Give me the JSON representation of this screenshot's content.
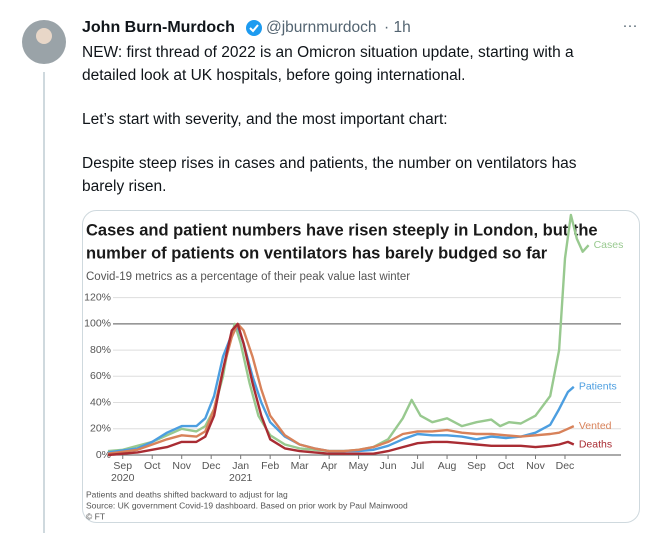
{
  "tweet": {
    "author": "John Burn-Murdoch",
    "handle": "@jburnmurdoch",
    "time": "· 1h",
    "more": "···",
    "paragraphs": [
      [
        "NEW: first thread of 2022 is an Omicron situation update, starting with a",
        "detailed look at UK hospitals, before going international."
      ],
      [
        "Let’s start with severity, and the most important chart:"
      ],
      [
        "Despite steep rises in cases and patients, the number on ventilators has",
        "barely risen."
      ]
    ]
  },
  "chart": {
    "type": "line",
    "title": [
      "Cases and patient numbers have risen steeply in London, but the",
      "number of patients on ventilators has barely budged so far"
    ],
    "subtitle": "Covid-19 metrics as a percentage of their peak value last winter",
    "xlim": [
      0,
      17.4
    ],
    "ylim": [
      0,
      183
    ],
    "yticks": [
      {
        "value": 0,
        "label": "0%"
      },
      {
        "value": 20,
        "label": "20%"
      },
      {
        "value": 40,
        "label": "40%"
      },
      {
        "value": 60,
        "label": "60%"
      },
      {
        "value": 80,
        "label": "80%"
      },
      {
        "value": 100,
        "label": "100%"
      },
      {
        "value": 120,
        "label": "120%"
      }
    ],
    "xticks": [
      {
        "value": 0.5,
        "label": "Sep"
      },
      {
        "value": 1.5,
        "label": "Oct"
      },
      {
        "value": 2.5,
        "label": "Nov"
      },
      {
        "value": 3.5,
        "label": "Dec"
      },
      {
        "value": 4.5,
        "label": "Jan"
      },
      {
        "value": 5.5,
        "label": "Feb"
      },
      {
        "value": 6.5,
        "label": "Mar"
      },
      {
        "value": 7.5,
        "label": "Apr"
      },
      {
        "value": 8.5,
        "label": "May"
      },
      {
        "value": 9.5,
        "label": "Jun"
      },
      {
        "value": 10.5,
        "label": "Jul"
      },
      {
        "value": 11.5,
        "label": "Aug"
      },
      {
        "value": 12.5,
        "label": "Sep"
      },
      {
        "value": 13.5,
        "label": "Oct"
      },
      {
        "value": 14.5,
        "label": "Nov"
      },
      {
        "value": 15.5,
        "label": "Dec"
      }
    ],
    "xyears": [
      {
        "value": 0.5,
        "label": "2020"
      },
      {
        "value": 4.5,
        "label": "2021"
      }
    ],
    "series": [
      {
        "name": "Cases",
        "color": "#98c98f",
        "x": [
          0,
          0.5,
          1,
          1.5,
          2,
          2.5,
          3,
          3.3,
          3.6,
          3.9,
          4.1,
          4.3,
          4.5,
          4.8,
          5.1,
          5.5,
          6,
          6.5,
          7,
          7.5,
          8,
          8.5,
          9,
          9.5,
          10,
          10.3,
          10.6,
          11,
          11.5,
          12,
          12.5,
          13,
          13.3,
          13.6,
          14,
          14.5,
          15,
          15.3,
          15.5,
          15.7,
          15.9,
          16.1,
          16.3
        ],
        "values": [
          3,
          4,
          7,
          10,
          15,
          20,
          18,
          22,
          35,
          60,
          85,
          100,
          85,
          55,
          30,
          15,
          8,
          5,
          4,
          3,
          3,
          4,
          6,
          12,
          28,
          42,
          30,
          25,
          28,
          22,
          25,
          27,
          22,
          25,
          24,
          30,
          45,
          80,
          150,
          183,
          165,
          155,
          160
        ]
      },
      {
        "name": "Patients",
        "color": "#4c9ee0",
        "x": [
          0,
          1,
          1.5,
          2,
          2.5,
          3,
          3.3,
          3.6,
          3.9,
          4.2,
          4.4,
          4.6,
          4.9,
          5.2,
          5.5,
          6,
          6.5,
          7,
          7.5,
          8,
          8.5,
          9,
          9.5,
          10,
          10.5,
          11,
          11.5,
          12,
          12.5,
          13,
          13.5,
          14,
          14.5,
          15,
          15.3,
          15.6,
          15.8
        ],
        "values": [
          2,
          5,
          10,
          17,
          22,
          22,
          28,
          45,
          75,
          92,
          98,
          85,
          60,
          40,
          25,
          14,
          8,
          5,
          3,
          3,
          3,
          4,
          7,
          12,
          16,
          15,
          15,
          14,
          12,
          14,
          13,
          14,
          17,
          23,
          35,
          48,
          52
        ]
      },
      {
        "name": "Vented",
        "color": "#d8825a",
        "x": [
          0,
          1,
          2,
          2.5,
          3,
          3.3,
          3.6,
          3.9,
          4.2,
          4.4,
          4.6,
          4.9,
          5.2,
          5.5,
          6,
          6.5,
          7,
          7.5,
          8,
          8.5,
          9,
          9.5,
          10,
          10.5,
          11,
          11.5,
          12,
          12.5,
          13,
          13.5,
          14,
          14.5,
          15,
          15.3,
          15.6,
          15.8
        ],
        "values": [
          1,
          4,
          12,
          15,
          14,
          18,
          35,
          65,
          90,
          100,
          95,
          75,
          50,
          30,
          15,
          8,
          5,
          3,
          3,
          4,
          6,
          10,
          16,
          18,
          18,
          19,
          17,
          16,
          16,
          15,
          14,
          15,
          16,
          17,
          20,
          22
        ]
      },
      {
        "name": "Deaths",
        "color": "#a92c33",
        "x": [
          0,
          1,
          2,
          2.5,
          3,
          3.3,
          3.6,
          3.9,
          4.2,
          4.4,
          4.6,
          4.9,
          5.2,
          5.5,
          6,
          6.5,
          7,
          7.5,
          8,
          8.5,
          9,
          9.5,
          10,
          10.5,
          11,
          11.5,
          12,
          12.5,
          13,
          13.5,
          14,
          14.5,
          15,
          15.3,
          15.6,
          15.8
        ],
        "values": [
          0,
          2,
          6,
          10,
          10,
          14,
          30,
          65,
          95,
          100,
          85,
          55,
          30,
          12,
          5,
          3,
          2,
          1,
          1,
          1,
          1,
          3,
          6,
          9,
          10,
          10,
          9,
          8,
          7,
          7,
          7,
          6,
          7,
          8,
          10,
          8
        ]
      }
    ],
    "notes": [
      "Patients and deaths shifted backward to adjust for lag",
      "Source: UK government Covid-19 dashboard. Based on prior work by Paul Mainwood",
      "© FT"
    ]
  }
}
